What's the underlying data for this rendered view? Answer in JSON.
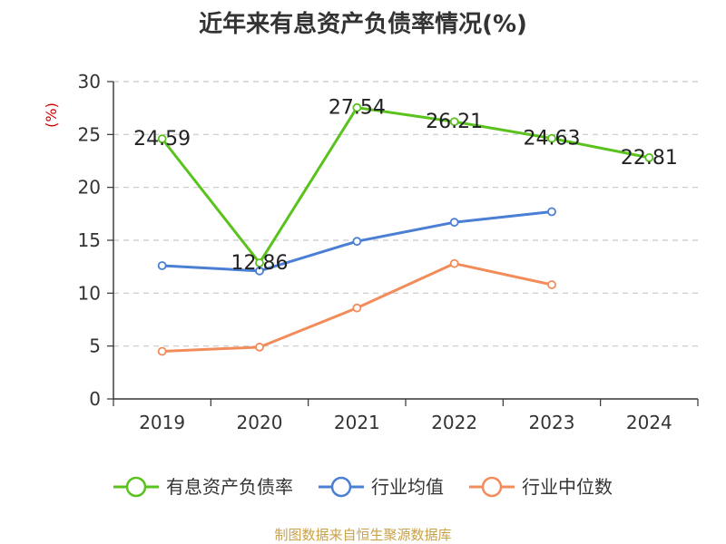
{
  "chart_data": {
    "type": "line",
    "title": "近年来有息资产负债率情况(%)",
    "ylabel": "(%)",
    "xlabel": "",
    "categories": [
      "2019",
      "2020",
      "2021",
      "2022",
      "2023",
      "2024"
    ],
    "ylim": [
      0,
      30
    ],
    "yticks": [
      0,
      5,
      10,
      15,
      20,
      25,
      30
    ],
    "grid": true,
    "legend_position": "bottom",
    "series": [
      {
        "name": "有息资产负债率",
        "color": "#5ac21c",
        "values": [
          24.59,
          12.86,
          27.54,
          26.21,
          24.63,
          22.81
        ],
        "labels": [
          "24.59",
          "12.86",
          "27.54",
          "26.21",
          "24.63",
          "22.81"
        ]
      },
      {
        "name": "行业均值",
        "color": "#4a7fd4",
        "values": [
          12.6,
          12.1,
          14.9,
          16.7,
          17.7,
          null
        ]
      },
      {
        "name": "行业中位数",
        "color": "#f28c5a",
        "values": [
          4.5,
          4.9,
          8.6,
          12.8,
          10.8,
          null
        ]
      }
    ]
  },
  "source": "制图数据来自恒生聚源数据库"
}
